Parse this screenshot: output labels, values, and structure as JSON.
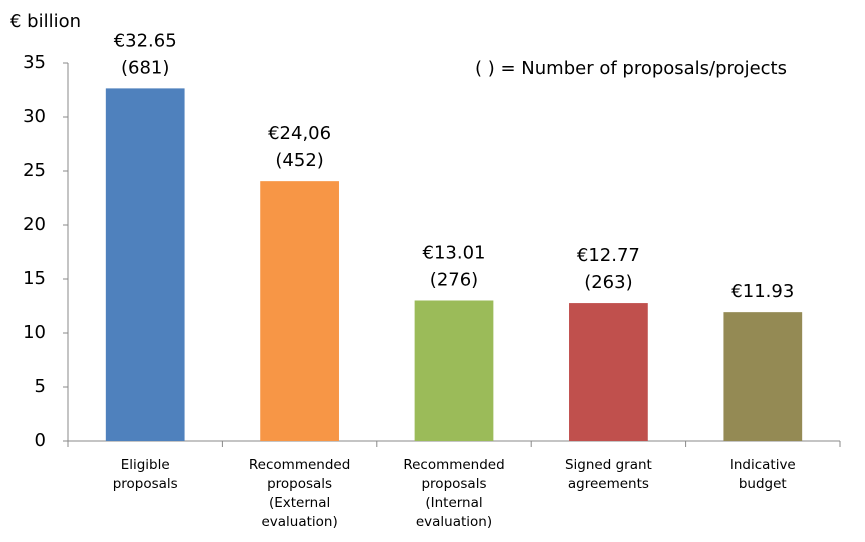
{
  "chart_data": {
    "type": "bar",
    "y_axis_label": "€ billion",
    "annotation": "(  ) = Number of proposals/projects",
    "categories": [
      [
        "Eligible",
        "proposals"
      ],
      [
        "Recommended",
        "proposals",
        "(External",
        "evaluation)"
      ],
      [
        "Recommended",
        "proposals",
        "(Internal",
        "evaluation)"
      ],
      [
        "Signed grant",
        "agreements"
      ],
      [
        "Indicative",
        "budget"
      ]
    ],
    "values": [
      32.65,
      24.06,
      13.01,
      12.77,
      11.93
    ],
    "value_labels": [
      "€32.65",
      "€24,06",
      "€13.01",
      "€12.77",
      "€11.93"
    ],
    "proposal_counts": [
      "(681)",
      "(452)",
      "(276)",
      "(263)",
      null
    ],
    "colors": [
      "#4f81bd",
      "#f79646",
      "#9bbb59",
      "#c0504d",
      "#948a54"
    ],
    "ylim": [
      0,
      35
    ],
    "yticks": [
      0,
      5,
      10,
      15,
      20,
      25,
      30,
      35
    ],
    "grid": false
  }
}
